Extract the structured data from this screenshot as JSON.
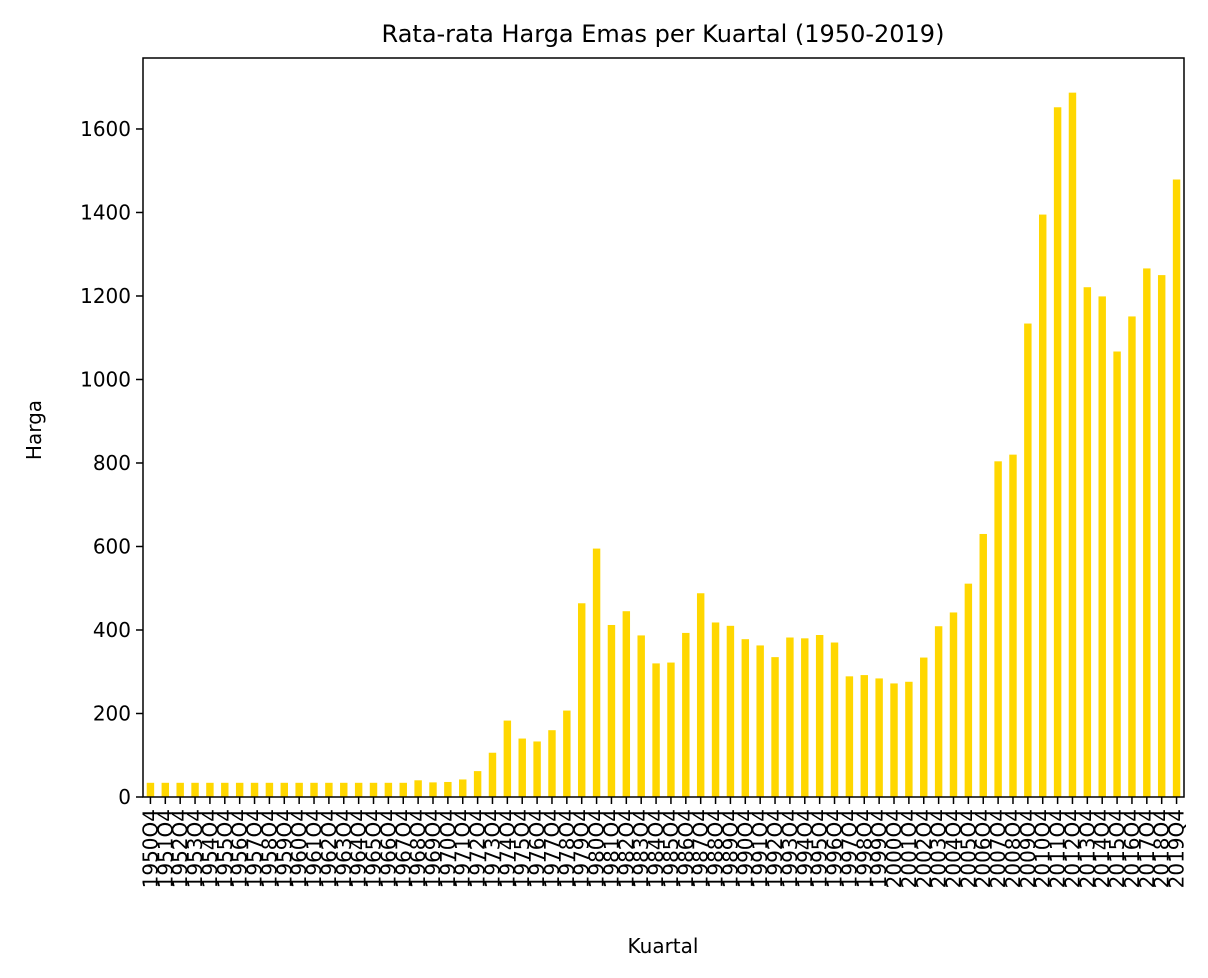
{
  "chart_data": {
    "type": "bar",
    "title": "Rata-rata Harga Emas per Kuartal (1950-2019)",
    "xlabel": "Kuartal",
    "ylabel": "Harga",
    "ylim": [
      0,
      1770
    ],
    "yticks": [
      0,
      200,
      400,
      600,
      800,
      1000,
      1200,
      1400,
      1600
    ],
    "grid": false,
    "legend": "none",
    "bar_color": "#FFD700",
    "categories": [
      "1950Q4",
      "1951Q4",
      "1952Q4",
      "1953Q4",
      "1954Q4",
      "1955Q4",
      "1956Q4",
      "1957Q4",
      "1958Q4",
      "1959Q4",
      "1960Q4",
      "1961Q4",
      "1962Q4",
      "1963Q4",
      "1964Q4",
      "1965Q4",
      "1966Q4",
      "1967Q4",
      "1968Q4",
      "1969Q4",
      "1970Q4",
      "1971Q4",
      "1972Q4",
      "1973Q4",
      "1974Q4",
      "1975Q4",
      "1976Q4",
      "1977Q4",
      "1978Q4",
      "1979Q4",
      "1980Q4",
      "1981Q4",
      "1982Q4",
      "1983Q4",
      "1984Q4",
      "1985Q4",
      "1986Q4",
      "1987Q4",
      "1988Q4",
      "1989Q4",
      "1990Q4",
      "1991Q4",
      "1992Q4",
      "1993Q4",
      "1994Q4",
      "1995Q4",
      "1996Q4",
      "1997Q4",
      "1998Q4",
      "1999Q4",
      "2000Q4",
      "2001Q4",
      "2002Q4",
      "2003Q4",
      "2004Q4",
      "2005Q4",
      "2006Q4",
      "2007Q4",
      "2008Q4",
      "2009Q4",
      "2010Q4",
      "2011Q4",
      "2012Q4",
      "2013Q4",
      "2014Q4",
      "2015Q4",
      "2016Q4",
      "2017Q4",
      "2018Q4",
      "2019Q4"
    ],
    "values": [
      34,
      34,
      34,
      34,
      34,
      34,
      34,
      34,
      34,
      34,
      34,
      34,
      34,
      34,
      34,
      34,
      34,
      34,
      40,
      35,
      36,
      42,
      62,
      106,
      183,
      140,
      133,
      160,
      207,
      464,
      595,
      412,
      445,
      387,
      320,
      322,
      393,
      488,
      418,
      410,
      378,
      363,
      335,
      382,
      380,
      388,
      370,
      289,
      292,
      284,
      272,
      276,
      334,
      409,
      442,
      511,
      630,
      804,
      820,
      1134,
      1395,
      1652,
      1687,
      1221,
      1199,
      1067,
      1151,
      1266,
      1250,
      1479
    ]
  }
}
